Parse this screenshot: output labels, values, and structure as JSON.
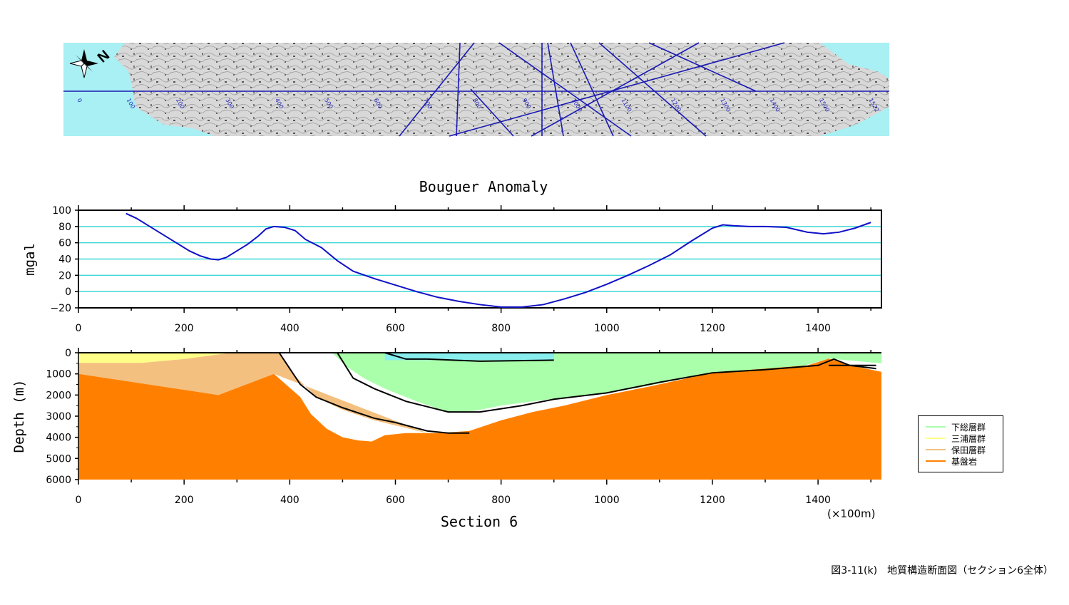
{
  "map_strip": {
    "north_label": "N",
    "line_labels": [
      "0",
      "100",
      "200",
      "300",
      "400",
      "500",
      "600",
      "700",
      "800",
      "900",
      "1000",
      "1100",
      "1200",
      "1300",
      "1400",
      "1500",
      "1522"
    ]
  },
  "chart_data": [
    {
      "type": "line",
      "title": "Bouguer Anomaly",
      "xlabel": "",
      "ylabel": "mgal",
      "xlim": [
        0,
        1520
      ],
      "ylim": [
        -20,
        100
      ],
      "xticks": [
        0,
        200,
        400,
        600,
        800,
        1000,
        1200,
        1400
      ],
      "yticks": [
        100,
        80,
        60,
        40,
        20,
        0,
        -20
      ],
      "grid": true,
      "color": "#1010c8",
      "grid_color": "#40d8d8",
      "series": [
        {
          "x": [
            90,
            110,
            130,
            150,
            170,
            190,
            210,
            230,
            250,
            265,
            280,
            300,
            320,
            340,
            355,
            370,
            390,
            410,
            430,
            460,
            490,
            520,
            560,
            600,
            640,
            680,
            720,
            760,
            800,
            840,
            880,
            920,
            960,
            1000,
            1040,
            1080,
            1120,
            1160,
            1200,
            1220,
            1240,
            1270,
            1300,
            1340,
            1380,
            1410,
            1440,
            1470,
            1500
          ],
          "y": [
            96,
            90,
            82,
            74,
            66,
            58,
            50,
            44,
            40,
            39,
            42,
            50,
            58,
            68,
            77,
            80,
            79,
            75,
            64,
            54,
            38,
            25,
            16,
            8,
            0,
            -7,
            -12,
            -16,
            -19,
            -19,
            -16,
            -9,
            -1,
            9,
            20,
            32,
            45,
            62,
            78,
            82,
            81,
            80,
            80,
            79,
            73,
            71,
            73,
            78,
            85
          ]
        }
      ]
    },
    {
      "type": "area",
      "title": "Section 6",
      "xlabel": "Section 6",
      "ylabel": "Depth (m)",
      "xlim": [
        0,
        1520
      ],
      "ylim": [
        6000,
        0
      ],
      "xticks": [
        0,
        200,
        400,
        600,
        800,
        1000,
        1200,
        1400
      ],
      "yticks": [
        0,
        1000,
        2000,
        3000,
        4000,
        5000,
        6000
      ],
      "x_unit_note": "(×100m)",
      "layers": [
        {
          "name": "三浦層群",
          "color": "#ffff88",
          "top": {
            "x": [
              0,
              1520
            ],
            "y": [
              0,
              0
            ]
          },
          "bottom": {
            "x": [
              0,
              120,
              200,
              290,
              380,
              1520
            ],
            "y": [
              480,
              480,
              300,
              0,
              0,
              0
            ]
          }
        },
        {
          "name": "保田層群",
          "color": "#f4c080",
          "top": {
            "x": [
              0,
              120,
              200,
              290,
              380,
              410,
              450,
              500,
              560,
              660
            ],
            "y": [
              480,
              480,
              300,
              0,
              0,
              1100,
              2100,
              2700,
              3200,
              3800
            ]
          },
          "bottom": {
            "x": [
              0,
              265,
              370,
              660
            ],
            "y": [
              1000,
              2000,
              1000,
              3800
            ]
          }
        },
        {
          "name": "下総層群",
          "color": "#aaffaa",
          "top": {
            "x": [
              480,
              1520
            ],
            "y": [
              0,
              0
            ]
          },
          "bottom": {
            "x": [
              480,
              510,
              540,
              580,
              640,
              700,
              750,
              800,
              860,
              940,
              1000,
              1060,
              1200,
              1360,
              1420,
              1520
            ],
            "y": [
              0,
              700,
              1200,
              1700,
              2300,
              2800,
              2750,
              2500,
              2300,
              2050,
              1900,
              1650,
              950,
              700,
              280,
              500
            ]
          }
        },
        {
          "name": "基盤岩",
          "color": "#ff8000",
          "top": {
            "x": [
              0,
              265,
              370,
              420,
              440,
              470,
              500,
              530,
              555,
              580,
              620,
              680,
              740,
              800,
              860,
              920,
              1000,
              1080,
              1200,
              1300,
              1380,
              1420,
              1470,
              1520
            ],
            "y": [
              1000,
              2000,
              1000,
              2100,
              2900,
              3600,
              4000,
              4150,
              4200,
              3900,
              3800,
              3800,
              3700,
              3200,
              2800,
              2500,
              2000,
              1600,
              950,
              750,
              600,
              280,
              650,
              900
            ]
          },
          "bottom": {
            "x": [
              0,
              1520
            ],
            "y": [
              6000,
              6000
            ]
          }
        }
      ],
      "water": {
        "color": "#88eeee",
        "x": [
          580,
          900
        ],
        "y": [
          0,
          350
        ]
      },
      "boundary_lines": [
        {
          "x": [
            380,
            420,
            450,
            500,
            560,
            600,
            660,
            700,
            740
          ],
          "y": [
            0,
            1500,
            2100,
            2600,
            3100,
            3300,
            3700,
            3800,
            3800
          ]
        },
        {
          "x": [
            490,
            520,
            560,
            620,
            700,
            760,
            840,
            900,
            1000,
            1100,
            1200,
            1300,
            1400,
            1430,
            1460,
            1510
          ],
          "y": [
            0,
            1200,
            1700,
            2300,
            2800,
            2800,
            2500,
            2200,
            1900,
            1400,
            950,
            800,
            600,
            300,
            600,
            750
          ]
        },
        {
          "x": [
            580,
            620,
            660,
            760,
            900
          ],
          "y": [
            0,
            300,
            300,
            400,
            350
          ]
        },
        {
          "x": [
            1420,
            1510
          ],
          "y": [
            600,
            600
          ]
        }
      ]
    }
  ],
  "legend": {
    "items": [
      {
        "label": "下総層群",
        "color": "#aaffaa"
      },
      {
        "label": "三浦層群",
        "color": "#ffff88"
      },
      {
        "label": "保田層群",
        "color": "#f4c080"
      },
      {
        "label": "基盤岩",
        "color": "#ff8000"
      }
    ]
  },
  "caption": "図3-11(k)　地質構造断面図（セクション6全体）"
}
